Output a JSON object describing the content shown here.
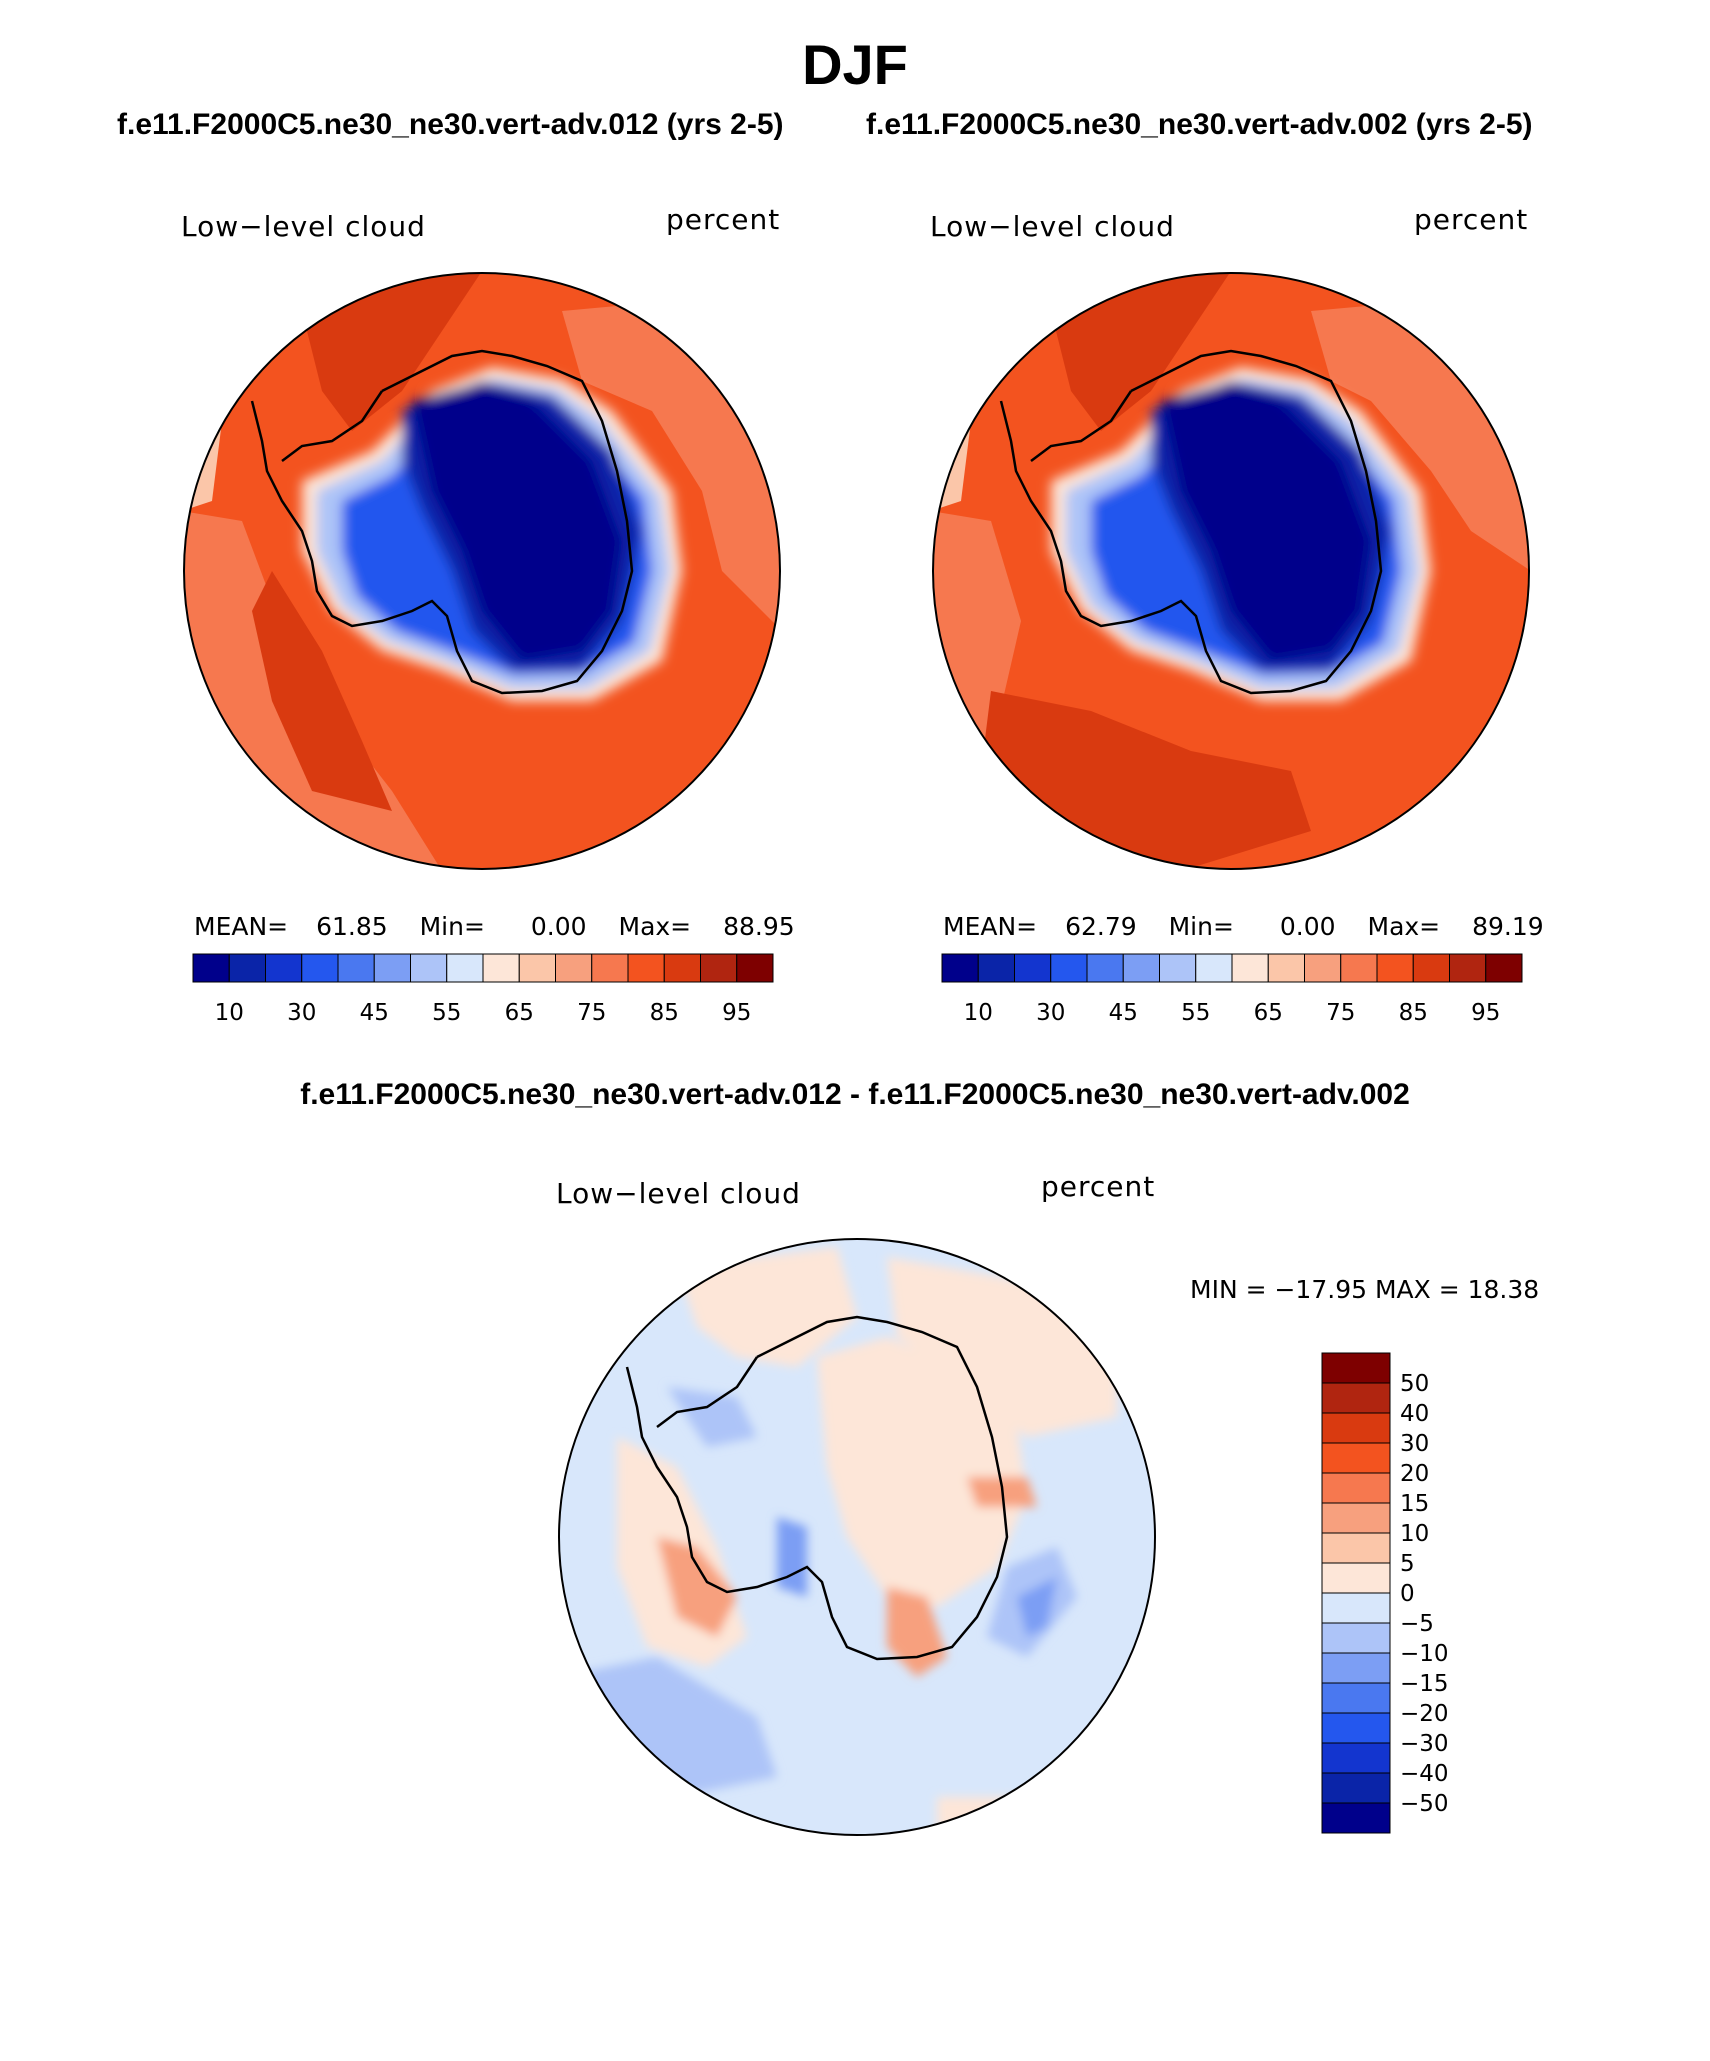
{
  "page": {
    "title": "DJF",
    "subtitle_left": "f.e11.F2000C5.ne30_ne30.vert-adv.012 (yrs 2-5)",
    "subtitle_right": "f.e11.F2000C5.ne30_ne30.vert-adv.002 (yrs 2-5)",
    "diff_title": "f.e11.F2000C5.ne30_ne30.vert-adv.012 - f.e11.F2000C5.ne30_ne30.vert-adv.002"
  },
  "panels": [
    {
      "variable": "Low−level cloud",
      "units": "percent",
      "stats": {
        "mean_label": "MEAN=",
        "mean": "61.85",
        "min_label": "Min=",
        "min": "0.00",
        "max_label": "Max=",
        "max": "88.95"
      }
    },
    {
      "variable": "Low−level cloud",
      "units": "percent",
      "stats": {
        "mean_label": "MEAN=",
        "mean": "62.79",
        "min_label": "Min=",
        "min": "0.00",
        "max_label": "Max=",
        "max": "89.19"
      }
    }
  ],
  "diff_panel": {
    "variable": "Low−level cloud",
    "units": "percent",
    "minmax": "MIN = −17.95  MAX =   18.38"
  },
  "colorbar": {
    "colors": [
      "#00008b",
      "#0a24a8",
      "#1335cf",
      "#2457ee",
      "#4a78f0",
      "#7c9ef4",
      "#adc4f8",
      "#d8e7fb",
      "#fde6d8",
      "#fbc6a9",
      "#f7a07e",
      "#f6784f",
      "#f3531f",
      "#d93a10",
      "#b02510",
      "#7e0000"
    ],
    "labels": [
      "10",
      "30",
      "45",
      "55",
      "65",
      "75",
      "85",
      "95"
    ]
  },
  "diff_colorbar": {
    "colors": [
      "#7e0000",
      "#b02510",
      "#d93a10",
      "#f3531f",
      "#f6784f",
      "#f7a07e",
      "#fbc6a9",
      "#fde6d8",
      "#d8e7fb",
      "#adc4f8",
      "#7c9ef4",
      "#4a78f0",
      "#2457ee",
      "#1335cf",
      "#0a24a8",
      "#00008b"
    ],
    "labels": [
      "50",
      "40",
      "30",
      "20",
      "15",
      "10",
      "5",
      "0",
      "−5",
      "−10",
      "−15",
      "−20",
      "−30",
      "−40",
      "−50"
    ]
  }
}
